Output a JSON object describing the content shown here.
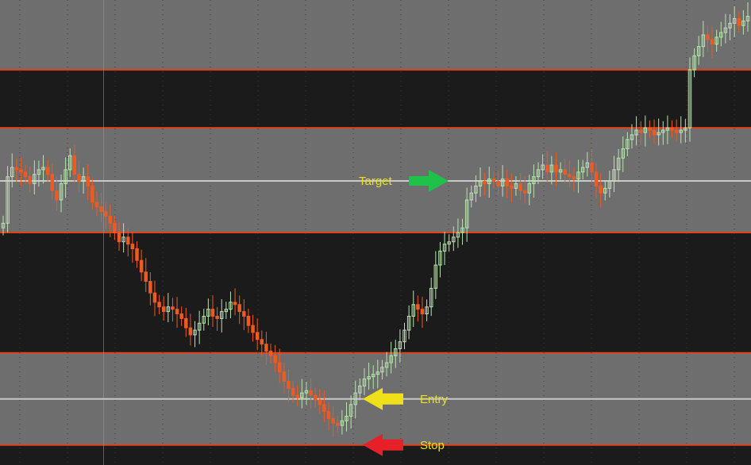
{
  "chart_data": {
    "type": "candlestick",
    "title": "",
    "xlabel": "",
    "ylabel": "",
    "ylim": [
      0,
      100
    ],
    "grid": true,
    "colors": {
      "background": "#1b1b1b",
      "band_fill": "#6e6e6e",
      "band_edge": "#e0431a",
      "level_line": "#c8c8c8",
      "up_candle": "#b8e2b0",
      "down_candle": "#ef5a22",
      "grid_dot": "#3a3a3a",
      "label_text": "#e8e020",
      "target_arrow": "#1ec24a",
      "entry_arrow": "#f0e01a",
      "stop_arrow": "#e62028"
    },
    "bands": [
      {
        "name": "upper-band",
        "from": 85,
        "to": 100
      },
      {
        "name": "middle-band",
        "from": 50,
        "to": 72.5
      },
      {
        "name": "lower-band",
        "from": 4.3,
        "to": 24.1
      }
    ],
    "levels": [
      {
        "name": "target",
        "value": 61.1
      },
      {
        "name": "entry",
        "value": 14.2
      }
    ],
    "annotations": [
      {
        "name": "target",
        "label": "Target",
        "level": 61.1,
        "arrow": "right",
        "color": "target_arrow"
      },
      {
        "name": "entry",
        "label": "Entry",
        "level": 14.2,
        "arrow": "left",
        "color": "entry_arrow"
      },
      {
        "name": "stop",
        "label": "Stop",
        "level": 4.3,
        "arrow": "left",
        "color": "stop_arrow"
      }
    ],
    "price_series": [
      52.0,
      62.0,
      64.0,
      63.5,
      63.0,
      62.0,
      60.5,
      62.5,
      63.5,
      64.0,
      62.5,
      59.0,
      57.0,
      60.5,
      63.5,
      66.5,
      62.5,
      61.0,
      62.0,
      60.0,
      56.5,
      55.5,
      54.5,
      53.5,
      52.0,
      50.0,
      48.0,
      49.0,
      47.5,
      46.5,
      44.0,
      41.5,
      39.5,
      37.0,
      35.0,
      34.0,
      33.0,
      34.0,
      33.5,
      32.5,
      31.5,
      29.5,
      28.0,
      29.0,
      30.5,
      32.0,
      33.5,
      32.0,
      31.5,
      33.0,
      33.5,
      35.0,
      34.5,
      33.0,
      32.0,
      30.0,
      28.5,
      27.0,
      26.0,
      24.5,
      23.5,
      22.0,
      20.0,
      18.0,
      16.5,
      15.0,
      14.5,
      15.5,
      16.0,
      15.0,
      14.0,
      13.0,
      11.5,
      10.0,
      9.0,
      8.5,
      9.5,
      10.5,
      13.0,
      15.5,
      17.0,
      18.5,
      19.0,
      19.5,
      20.0,
      21.0,
      22.0,
      23.5,
      25.0,
      26.5,
      29.0,
      32.0,
      34.5,
      33.5,
      32.5,
      34.0,
      38.0,
      43.0,
      46.0,
      47.5,
      48.0,
      49.0,
      50.0,
      51.0,
      57.0,
      58.5,
      60.0,
      61.0,
      60.5,
      61.5,
      61.0,
      60.0,
      61.5,
      60.0,
      59.5,
      60.5,
      59.0,
      58.5,
      60.5,
      62.0,
      63.5,
      64.5,
      63.0,
      64.5,
      63.0,
      63.5,
      62.5,
      62.0,
      61.5,
      63.0,
      64.0,
      65.0,
      63.0,
      60.0,
      58.5,
      59.5,
      61.0,
      63.5,
      66.0,
      68.0,
      70.0,
      71.0,
      72.0,
      71.5,
      72.5,
      72.0,
      71.0,
      71.5,
      72.0,
      72.5,
      72.0,
      71.5,
      72.0,
      72.5,
      85.0,
      88.0,
      90.0,
      92.5,
      91.5,
      90.5,
      92.0,
      93.0,
      94.0,
      95.0,
      96.0,
      94.5,
      95.5,
      96.5
    ]
  }
}
